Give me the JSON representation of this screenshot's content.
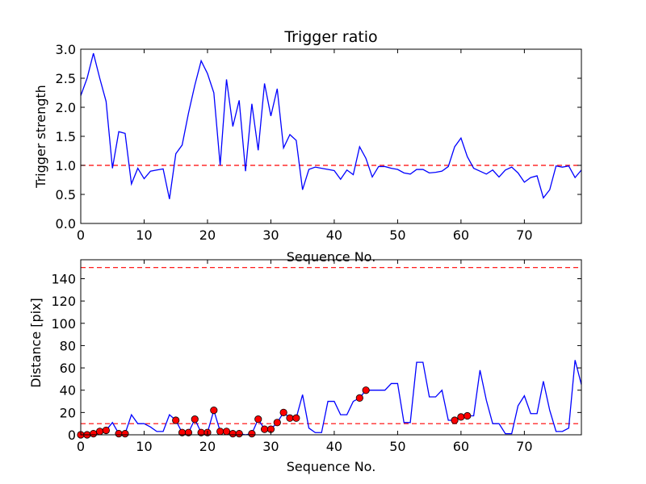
{
  "chart_data": [
    {
      "type": "line",
      "title": "Trigger ratio",
      "xlabel": "Sequence No.",
      "ylabel": "Trigger strength",
      "xlim": [
        0,
        79
      ],
      "ylim": [
        0,
        3.0
      ],
      "xticks": [
        "0",
        "10",
        "20",
        "30",
        "40",
        "50",
        "60",
        "70"
      ],
      "yticks": [
        "0.0",
        "0.5",
        "1.0",
        "1.5",
        "2.0",
        "2.5",
        "3.0"
      ],
      "threshold_lines": [
        1.0
      ],
      "series": [
        {
          "color": "#0000ff",
          "x": [
            0,
            1,
            2,
            3,
            4,
            5,
            6,
            7,
            8,
            9,
            10,
            11,
            12,
            13,
            14,
            15,
            16,
            17,
            18,
            19,
            20,
            21,
            22,
            23,
            24,
            25,
            26,
            27,
            28,
            29,
            30,
            31,
            32,
            33,
            34,
            35,
            36,
            37,
            38,
            39,
            40,
            41,
            42,
            43,
            44,
            45,
            46,
            47,
            48,
            49,
            50,
            51,
            52,
            53,
            54,
            55,
            56,
            57,
            58,
            59,
            60,
            61,
            62,
            63,
            64,
            65,
            66,
            67,
            68,
            69,
            70,
            71,
            72,
            73,
            74,
            75,
            76,
            77,
            78,
            79
          ],
          "y": [
            2.2,
            2.5,
            2.93,
            2.5,
            2.1,
            0.95,
            1.58,
            1.55,
            0.68,
            0.95,
            0.77,
            0.9,
            0.92,
            0.94,
            0.42,
            1.2,
            1.35,
            1.9,
            2.38,
            2.8,
            2.58,
            2.25,
            1.0,
            2.48,
            1.67,
            2.12,
            0.9,
            2.06,
            1.26,
            2.41,
            1.85,
            2.32,
            1.3,
            1.53,
            1.43,
            0.58,
            0.93,
            0.97,
            0.95,
            0.93,
            0.91,
            0.76,
            0.92,
            0.84,
            1.32,
            1.12,
            0.8,
            0.98,
            0.98,
            0.95,
            0.93,
            0.87,
            0.85,
            0.93,
            0.93,
            0.87,
            0.88,
            0.9,
            0.98,
            1.32,
            1.47,
            1.15,
            0.95,
            0.9,
            0.85,
            0.92,
            0.8,
            0.92,
            0.97,
            0.87,
            0.71,
            0.79,
            0.82,
            0.44,
            0.58,
            0.99,
            0.97,
            0.99,
            0.79,
            0.92
          ]
        }
      ],
      "grid": false,
      "legend": "none"
    },
    {
      "type": "line",
      "title": "",
      "xlabel": "Sequence No.",
      "ylabel": "Distance [pix]",
      "xlim": [
        0,
        79
      ],
      "ylim": [
        0,
        157
      ],
      "xticks": [
        "0",
        "10",
        "20",
        "30",
        "40",
        "50",
        "60",
        "70"
      ],
      "yticks": [
        "0",
        "20",
        "40",
        "60",
        "80",
        "100",
        "120",
        "140"
      ],
      "threshold_lines": [
        10,
        150
      ],
      "series": [
        {
          "color": "#0000ff",
          "x": [
            0,
            1,
            2,
            3,
            4,
            5,
            6,
            7,
            8,
            9,
            10,
            11,
            12,
            13,
            14,
            15,
            16,
            17,
            18,
            19,
            20,
            21,
            22,
            23,
            24,
            25,
            26,
            27,
            28,
            29,
            30,
            31,
            32,
            33,
            34,
            35,
            36,
            37,
            38,
            39,
            40,
            41,
            42,
            43,
            44,
            45,
            46,
            47,
            48,
            49,
            50,
            51,
            52,
            53,
            54,
            55,
            56,
            57,
            58,
            59,
            60,
            61,
            62,
            63,
            64,
            65,
            66,
            67,
            68,
            69,
            70,
            71,
            72,
            73,
            74,
            75,
            76,
            77,
            78,
            79
          ],
          "y": [
            0,
            0,
            1,
            3,
            4,
            11,
            1,
            1,
            18,
            10,
            10,
            7,
            3,
            3,
            18,
            13,
            2,
            2,
            14,
            2,
            2,
            22,
            3,
            3,
            1,
            1,
            0,
            1,
            14,
            5,
            5,
            11,
            20,
            15,
            15,
            36,
            6,
            2,
            2,
            30,
            30,
            18,
            18,
            30,
            33,
            40,
            40,
            40,
            40,
            46,
            46,
            11,
            11,
            65,
            65,
            34,
            34,
            40,
            13,
            13,
            16,
            17,
            17,
            58,
            31,
            10,
            10,
            1,
            1,
            26,
            35,
            19,
            19,
            48,
            22,
            3,
            3,
            6,
            67,
            45
          ],
          "markers": {
            "color": "#ff0000",
            "x": [
              0,
              1,
              2,
              3,
              4,
              6,
              7,
              15,
              16,
              17,
              18,
              19,
              20,
              21,
              22,
              23,
              24,
              25,
              27,
              28,
              29,
              30,
              31,
              32,
              33,
              34,
              44,
              45,
              59,
              60,
              61
            ],
            "y": [
              0,
              0,
              1,
              3,
              4,
              1,
              1,
              13,
              2,
              2,
              14,
              2,
              2,
              22,
              3,
              3,
              1,
              1,
              1,
              14,
              5,
              5,
              11,
              20,
              15,
              15,
              33,
              40,
              13,
              16,
              17
            ]
          }
        }
      ],
      "grid": false,
      "legend": "none"
    }
  ]
}
